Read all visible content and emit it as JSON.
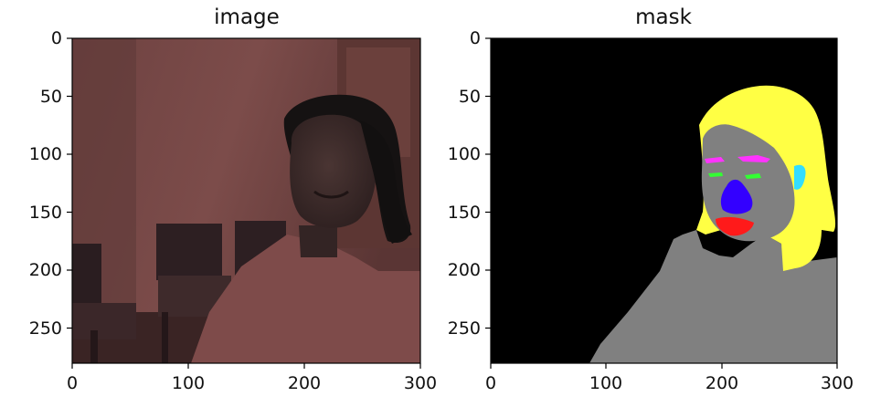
{
  "figure": {
    "panels": [
      {
        "title": "image",
        "xticks": [
          "0",
          "100",
          "200",
          "300"
        ],
        "yticks": [
          "0",
          "50",
          "100",
          "150",
          "200",
          "250"
        ]
      },
      {
        "title": "mask",
        "xticks": [
          "0",
          "100",
          "200",
          "300"
        ],
        "yticks": [
          "0",
          "50",
          "100",
          "150",
          "200",
          "250"
        ]
      }
    ]
  },
  "colors": {
    "wall": "#7a4a48",
    "door": "#6a3e3a",
    "chair": "#2d1f22",
    "skin": "#3b2a2a",
    "hair": "#141212",
    "sweater": "#84504f",
    "mask_background": "#000000",
    "mask_body": "#808080",
    "mask_hair": "#ffff44",
    "mask_nose": "#3300ff",
    "mask_lips": "#ff1a1a",
    "mask_brows": "#ff33ff",
    "mask_eyes": "#33ff33",
    "mask_ear": "#33ddff"
  }
}
